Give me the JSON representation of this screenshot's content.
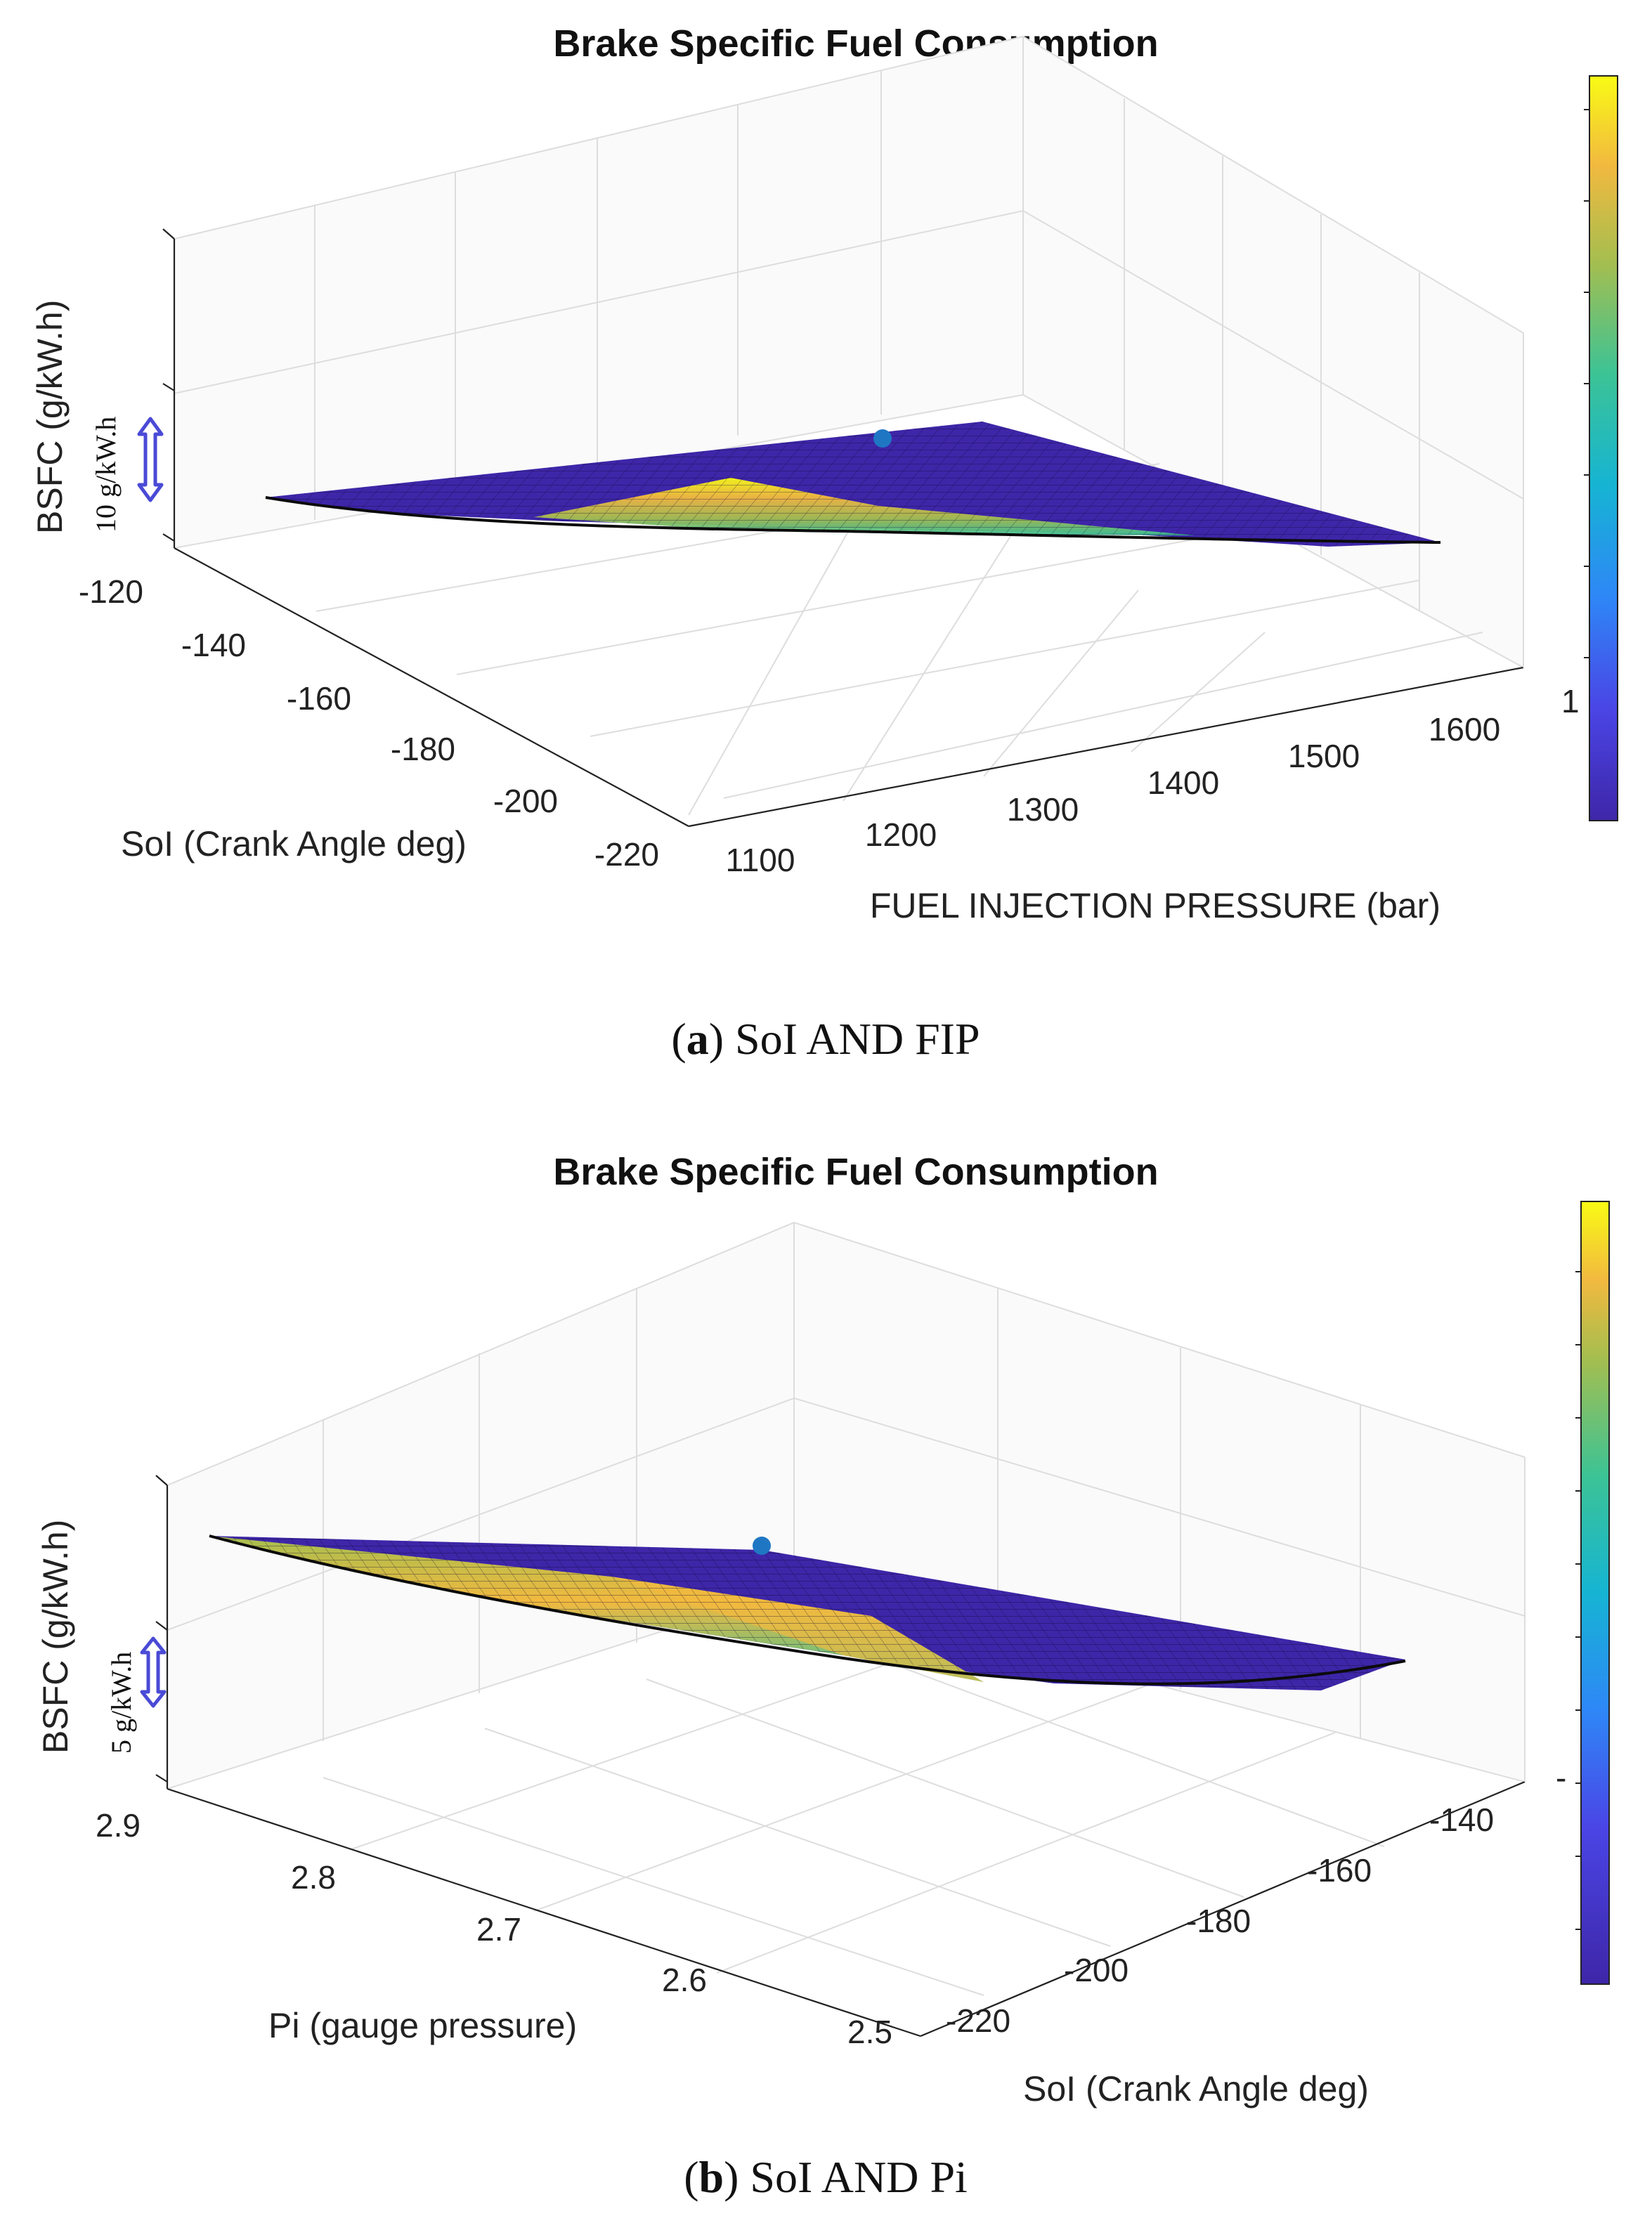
{
  "chart_data": [
    {
      "type": "surface",
      "title": "Brake Specific Fuel Consumption",
      "zlabel": "BSFC (g/kW.h)",
      "annotation": "10 g/kW.h",
      "x_axis": {
        "label": "FUEL INJECTION PRESSURE (bar)",
        "ticks": [
          "1100",
          "1200",
          "1300",
          "1400",
          "1500",
          "1600"
        ]
      },
      "y_axis": {
        "label": "SoI (Crank Angle deg)",
        "ticks": [
          "-120",
          "-140",
          "-160",
          "-180",
          "-200",
          "-220"
        ]
      },
      "colorbar_tick": "1",
      "caption_letter": "a",
      "caption_text": "SoI AND FIP",
      "colormap": [
        "#3e26a8",
        "#4a45e6",
        "#2e87f7",
        "#16b4d3",
        "#3cc395",
        "#a5be4f",
        "#f2b93f",
        "#f9fb15"
      ]
    },
    {
      "type": "surface",
      "title": "Brake Specific Fuel Consumption",
      "zlabel": "BSFC (g/kW.h)",
      "annotation": "5 g/kW.h",
      "x_axis": {
        "label": "Pi (gauge pressure)",
        "ticks": [
          "2.9",
          "2.8",
          "2.7",
          "2.6",
          "2.5"
        ]
      },
      "y_axis": {
        "label": "SoI (Crank Angle deg)",
        "ticks": [
          "-220",
          "-200",
          "-180",
          "-160",
          "-140"
        ]
      },
      "colorbar_tick": "-",
      "caption_letter": "b",
      "caption_text": "SoI AND Pi",
      "colormap": [
        "#3e26a8",
        "#4a45e6",
        "#2e87f7",
        "#16b4d3",
        "#3cc395",
        "#a5be4f",
        "#f2b93f",
        "#f9fb15"
      ]
    }
  ],
  "labels": {
    "paren_open": "(",
    "paren_close": ")"
  }
}
